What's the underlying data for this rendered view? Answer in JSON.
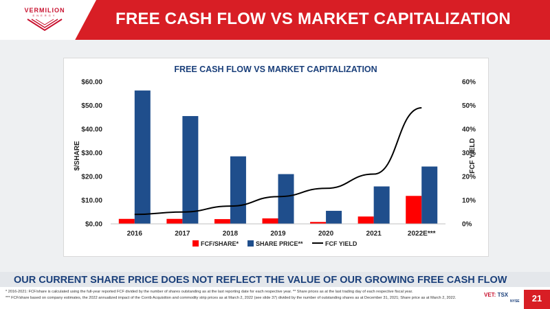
{
  "header": {
    "logo_name": "VERMILION",
    "logo_sub": "ENERGY",
    "title": "FREE CASH FLOW VS MARKET CAPITALIZATION"
  },
  "tagline": "OUR CURRENT SHARE PRICE DOES NOT REFLECT THE VALUE OF OUR GROWING FREE CASH FLOW",
  "footnotes": [
    "* 2016-2021: FCF/share is calculated using the full-year reported FCF divided by the number of shares outstanding as at the last reporting date for each respective year. ** Share prices as at the last trading day of each respective fiscal year.",
    "*** FCF/share based on company estimates, the 2022 annualized impact of the Corrib Acquisition and commodity strip prices as at March 2, 2022 (see slide 37) divided by the number of outstanding shares as at December 31, 2021; Share price as at March 2, 2022."
  ],
  "exchange": {
    "vet": "VET:",
    "tsx": "TSX",
    "nyse": "NYSE"
  },
  "page_number": "21",
  "colors": {
    "brand_red": "#d81e25",
    "fcf_bar": "#ff0000",
    "price_bar": "#1f4e8c",
    "yield_line": "#000000",
    "title_blue": "#1a3f7a"
  },
  "chart_data": {
    "type": "bar",
    "title": "FREE CASH FLOW VS MARKET CAPITALIZATION",
    "categories": [
      "2016",
      "2017",
      "2018",
      "2019",
      "2020",
      "2021",
      "2022E***"
    ],
    "series": [
      {
        "name": "FCF/SHARE*",
        "type": "bar",
        "axis": "left",
        "values": [
          2.1,
          2.1,
          2.0,
          2.3,
          0.8,
          3.1,
          11.8
        ]
      },
      {
        "name": "SHARE PRICE**",
        "type": "bar",
        "axis": "left",
        "values": [
          56.3,
          45.5,
          28.5,
          21.0,
          5.5,
          15.8,
          24.2
        ]
      },
      {
        "name": "FCF YIELD",
        "type": "line",
        "axis": "right",
        "values": [
          0.04,
          0.05,
          0.075,
          0.115,
          0.15,
          0.21,
          0.49
        ]
      }
    ],
    "ylabel": "$/SHARE",
    "y2label": "FCF YIELD",
    "ylim": [
      0,
      60
    ],
    "y2lim": [
      0,
      0.6
    ],
    "yticks": [
      "$0.00",
      "$10.00",
      "$20.00",
      "$30.00",
      "$40.00",
      "$50.00",
      "$60.00"
    ],
    "y2ticks": [
      "0%",
      "10%",
      "20%",
      "30%",
      "40%",
      "50%",
      "60%"
    ],
    "legend_position": "bottom",
    "grid": false
  }
}
